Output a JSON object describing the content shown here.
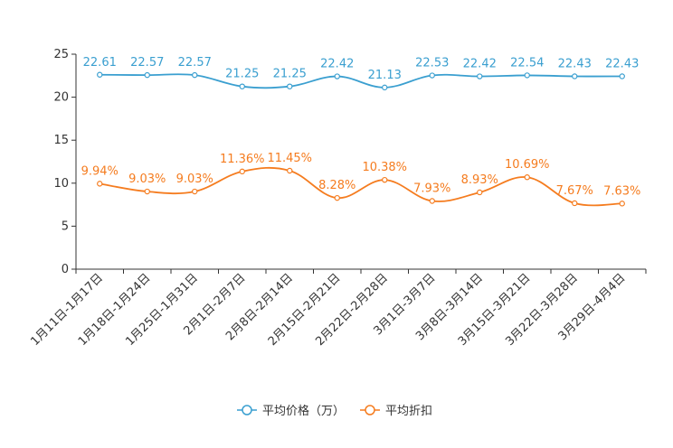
{
  "chart_data": {
    "type": "line",
    "title": "",
    "xlabel": "",
    "ylabel": "",
    "ylim": [
      0,
      25
    ],
    "yticks": [
      0,
      5,
      10,
      15,
      20,
      25
    ],
    "grid": false,
    "legend_position": "bottom-center",
    "categories": [
      "1月11日-1月17日",
      "1月18日-1月24日",
      "1月25日-1月31日",
      "2月1日-2月7日",
      "2月8日-2月14日",
      "2月15日-2月21日",
      "2月22日-2月28日",
      "3月1日-3月7日",
      "3月8日-3月14日",
      "3月15日-3月21日",
      "3月22日-3月28日",
      "3月29日-4月4日"
    ],
    "series": [
      {
        "name": "平均价格（万）",
        "color": "#3a9fd0",
        "values": [
          22.61,
          22.57,
          22.57,
          21.25,
          21.25,
          22.42,
          21.13,
          22.53,
          22.42,
          22.54,
          22.43,
          22.43
        ],
        "labels": [
          "22.61",
          "22.57",
          "22.57",
          "21.25",
          "21.25",
          "22.42",
          "21.13",
          "22.53",
          "22.42",
          "22.54",
          "22.43",
          "22.43"
        ]
      },
      {
        "name": "平均折扣",
        "color": "#f57c1f",
        "values": [
          9.94,
          9.03,
          9.03,
          11.36,
          11.45,
          8.28,
          10.38,
          7.93,
          8.93,
          10.69,
          7.67,
          7.63
        ],
        "labels": [
          "9.94%",
          "9.03%",
          "9.03%",
          "11.36%",
          "11.45%",
          "8.28%",
          "10.38%",
          "7.93%",
          "8.93%",
          "10.69%",
          "7.67%",
          "7.63%"
        ]
      }
    ]
  }
}
